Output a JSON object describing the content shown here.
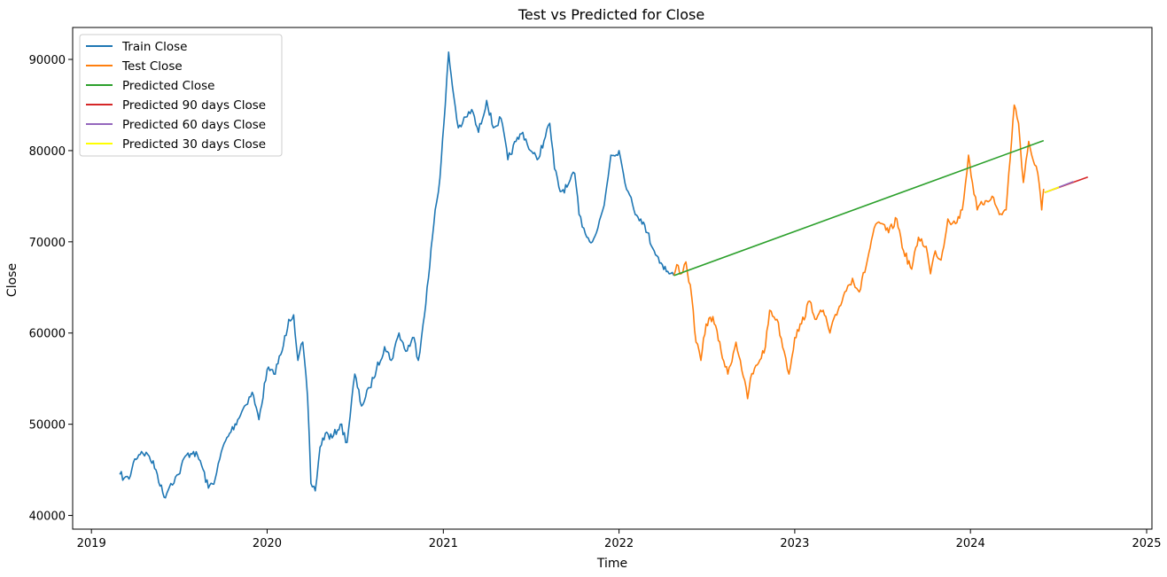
{
  "chart_data": {
    "type": "line",
    "title": "Test vs Predicted for Close",
    "xlabel": "Time",
    "ylabel": "Close",
    "x_axis": "date",
    "xlim": [
      "2018-11-23",
      "2025-01-12"
    ],
    "ylim": [
      38500,
      93500
    ],
    "x_ticks": [
      "2019",
      "2020",
      "2021",
      "2022",
      "2023",
      "2024",
      "2025"
    ],
    "y_ticks": [
      40000,
      50000,
      60000,
      70000,
      80000,
      90000
    ],
    "y_tick_labels": [
      "40000",
      "50000",
      "60000",
      "70000",
      "80000",
      "90000"
    ],
    "grid": false,
    "legend_position": "upper left",
    "series": [
      {
        "name": "Train Close",
        "color": "#1f77b4",
        "points": [
          [
            "2019-03-01",
            44500
          ],
          [
            "2019-03-10",
            44100
          ],
          [
            "2019-03-20",
            44000
          ],
          [
            "2019-04-01",
            46200
          ],
          [
            "2019-04-15",
            47000
          ],
          [
            "2019-05-01",
            46500
          ],
          [
            "2019-05-15",
            45000
          ],
          [
            "2019-06-01",
            42000
          ],
          [
            "2019-06-15",
            43500
          ],
          [
            "2019-07-01",
            44500
          ],
          [
            "2019-07-15",
            46500
          ],
          [
            "2019-08-01",
            47000
          ],
          [
            "2019-08-15",
            46000
          ],
          [
            "2019-09-01",
            43000
          ],
          [
            "2019-09-15",
            44000
          ],
          [
            "2019-10-01",
            47500
          ],
          [
            "2019-10-15",
            49000
          ],
          [
            "2019-11-01",
            50500
          ],
          [
            "2019-11-15",
            52000
          ],
          [
            "2019-12-01",
            53500
          ],
          [
            "2019-12-15",
            50500
          ],
          [
            "2020-01-01",
            56000
          ],
          [
            "2020-01-15",
            55500
          ],
          [
            "2020-02-01",
            58000
          ],
          [
            "2020-02-15",
            61500
          ],
          [
            "2020-02-25",
            62000
          ],
          [
            "2020-03-05",
            57000
          ],
          [
            "2020-03-15",
            59000
          ],
          [
            "2020-03-25",
            53000
          ],
          [
            "2020-04-01",
            43500
          ],
          [
            "2020-04-10",
            42700
          ],
          [
            "2020-04-20",
            47500
          ],
          [
            "2020-05-01",
            49000
          ],
          [
            "2020-05-15",
            48500
          ],
          [
            "2020-06-01",
            50000
          ],
          [
            "2020-06-15",
            48000
          ],
          [
            "2020-07-01",
            55500
          ],
          [
            "2020-07-15",
            52000
          ],
          [
            "2020-08-01",
            54000
          ],
          [
            "2020-08-15",
            56000
          ],
          [
            "2020-09-01",
            58500
          ],
          [
            "2020-09-15",
            57000
          ],
          [
            "2020-10-01",
            60000
          ],
          [
            "2020-10-15",
            58000
          ],
          [
            "2020-11-01",
            59500
          ],
          [
            "2020-11-10",
            57000
          ],
          [
            "2020-11-20",
            61000
          ],
          [
            "2020-12-01",
            66000
          ],
          [
            "2020-12-15",
            73500
          ],
          [
            "2020-12-25",
            77000
          ],
          [
            "2021-01-05",
            85000
          ],
          [
            "2021-01-12",
            90800
          ],
          [
            "2021-01-20",
            87000
          ],
          [
            "2021-02-01",
            82500
          ],
          [
            "2021-02-10",
            83000
          ],
          [
            "2021-03-01",
            84500
          ],
          [
            "2021-03-15",
            82000
          ],
          [
            "2021-04-01",
            85500
          ],
          [
            "2021-04-15",
            82500
          ],
          [
            "2021-05-01",
            83500
          ],
          [
            "2021-05-15",
            79000
          ],
          [
            "2021-06-01",
            81000
          ],
          [
            "2021-06-15",
            82000
          ],
          [
            "2021-07-01",
            80000
          ],
          [
            "2021-07-15",
            79000
          ],
          [
            "2021-08-01",
            81500
          ],
          [
            "2021-08-10",
            83000
          ],
          [
            "2021-08-20",
            78000
          ],
          [
            "2021-09-01",
            75500
          ],
          [
            "2021-09-15",
            76000
          ],
          [
            "2021-10-01",
            77500
          ],
          [
            "2021-10-10",
            73000
          ],
          [
            "2021-10-20",
            71500
          ],
          [
            "2021-11-01",
            70000
          ],
          [
            "2021-11-15",
            71000
          ],
          [
            "2021-12-01",
            74000
          ],
          [
            "2021-12-15",
            79500
          ],
          [
            "2022-01-01",
            80000
          ],
          [
            "2022-01-10",
            77500
          ],
          [
            "2022-01-20",
            75500
          ],
          [
            "2022-02-01",
            73500
          ],
          [
            "2022-02-15",
            72500
          ],
          [
            "2022-03-01",
            71000
          ],
          [
            "2022-03-15",
            69000
          ],
          [
            "2022-04-01",
            67500
          ],
          [
            "2022-04-15",
            66500
          ],
          [
            "2022-04-25",
            66300
          ]
        ]
      },
      {
        "name": "Test Close",
        "color": "#ff7f0e",
        "points": [
          [
            "2022-04-25",
            66300
          ],
          [
            "2022-05-01",
            67500
          ],
          [
            "2022-05-10",
            66500
          ],
          [
            "2022-05-20",
            67800
          ],
          [
            "2022-06-01",
            64000
          ],
          [
            "2022-06-10",
            59000
          ],
          [
            "2022-06-20",
            57000
          ],
          [
            "2022-07-01",
            61000
          ],
          [
            "2022-07-15",
            61800
          ],
          [
            "2022-08-01",
            58000
          ],
          [
            "2022-08-15",
            55500
          ],
          [
            "2022-09-01",
            59000
          ],
          [
            "2022-09-10",
            57000
          ],
          [
            "2022-09-25",
            52800
          ],
          [
            "2022-10-01",
            55000
          ],
          [
            "2022-10-15",
            56500
          ],
          [
            "2022-11-01",
            58500
          ],
          [
            "2022-11-10",
            62500
          ],
          [
            "2022-11-25",
            61500
          ],
          [
            "2022-12-10",
            58000
          ],
          [
            "2022-12-20",
            55500
          ],
          [
            "2023-01-01",
            59500
          ],
          [
            "2023-01-15",
            61000
          ],
          [
            "2023-02-01",
            63500
          ],
          [
            "2023-02-15",
            61500
          ],
          [
            "2023-03-01",
            62500
          ],
          [
            "2023-03-15",
            60000
          ],
          [
            "2023-04-01",
            62500
          ],
          [
            "2023-04-15",
            64500
          ],
          [
            "2023-05-01",
            66000
          ],
          [
            "2023-05-15",
            64500
          ],
          [
            "2023-06-01",
            68000
          ],
          [
            "2023-06-15",
            71500
          ],
          [
            "2023-07-01",
            72000
          ],
          [
            "2023-07-15",
            71000
          ],
          [
            "2023-08-01",
            72500
          ],
          [
            "2023-08-15",
            69000
          ],
          [
            "2023-09-01",
            67000
          ],
          [
            "2023-09-15",
            70500
          ],
          [
            "2023-10-01",
            69500
          ],
          [
            "2023-10-10",
            66500
          ],
          [
            "2023-10-20",
            69000
          ],
          [
            "2023-11-01",
            68000
          ],
          [
            "2023-11-15",
            72500
          ],
          [
            "2023-12-01",
            72000
          ],
          [
            "2023-12-15",
            73500
          ],
          [
            "2023-12-28",
            79500
          ],
          [
            "2024-01-05",
            76500
          ],
          [
            "2024-01-15",
            73500
          ],
          [
            "2024-02-01",
            74500
          ],
          [
            "2024-02-15",
            75000
          ],
          [
            "2024-03-01",
            73000
          ],
          [
            "2024-03-15",
            73500
          ],
          [
            "2024-04-01",
            85000
          ],
          [
            "2024-04-10",
            83000
          ],
          [
            "2024-04-20",
            76500
          ],
          [
            "2024-05-01",
            81000
          ],
          [
            "2024-05-10",
            79000
          ],
          [
            "2024-05-20",
            77500
          ],
          [
            "2024-05-28",
            73500
          ],
          [
            "2024-06-01",
            75800
          ]
        ]
      },
      {
        "name": "Predicted Close",
        "color": "#2ca02c",
        "points": [
          [
            "2022-04-25",
            66300
          ],
          [
            "2024-06-01",
            81100
          ]
        ]
      },
      {
        "name": "Predicted 90 days Close",
        "color": "#d62728",
        "points": [
          [
            "2024-06-03",
            75400
          ],
          [
            "2024-09-01",
            77100
          ]
        ]
      },
      {
        "name": "Predicted 60 days Close",
        "color": "#9467bd",
        "points": [
          [
            "2024-06-03",
            75400
          ],
          [
            "2024-08-02",
            76600
          ]
        ]
      },
      {
        "name": "Predicted 30 days Close",
        "color": "#ffff00",
        "points": [
          [
            "2024-06-03",
            75400
          ],
          [
            "2024-07-03",
            76000
          ]
        ]
      }
    ]
  }
}
